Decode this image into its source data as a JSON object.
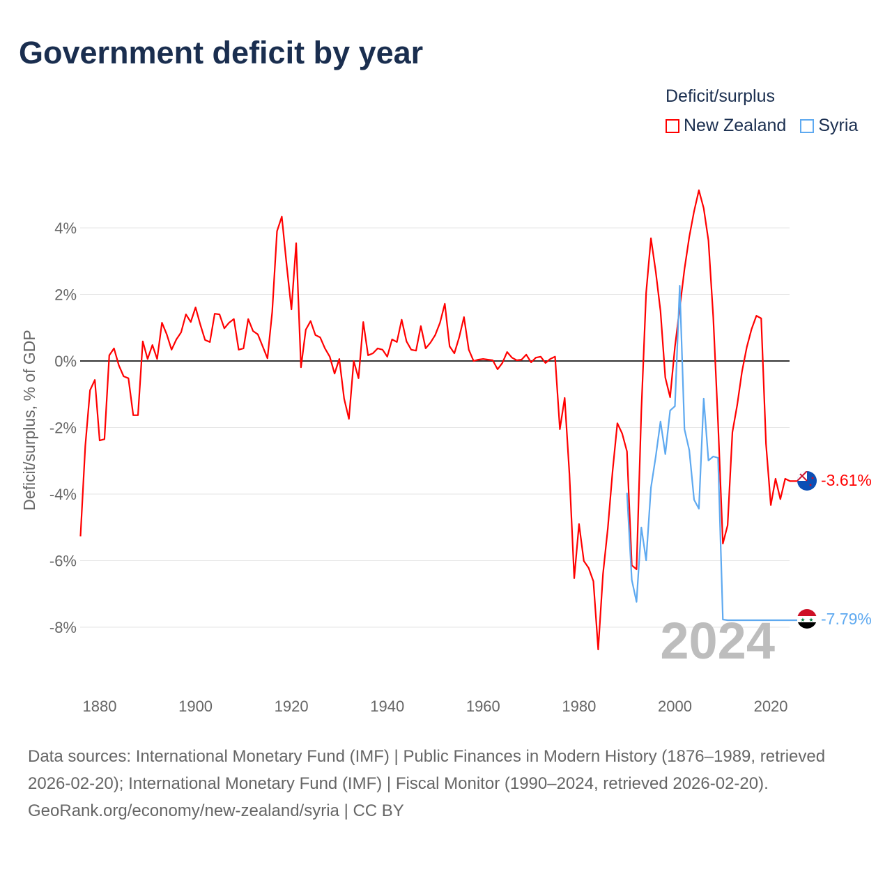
{
  "title": "Government deficit by year",
  "legend": {
    "title": "Deficit/surplus",
    "items": [
      {
        "name": "New Zealand",
        "color": "#ff0000"
      },
      {
        "name": "Syria",
        "color": "#5ea9f0"
      }
    ]
  },
  "footer": {
    "sources": "Data sources: International Monetary Fund (IMF) | Public Finances in Modern History (1876–1989, retrieved 2026-02-20); International Monetary Fund (IMF) | Fiscal Monitor (1990–2024, retrieved 2026-02-20).",
    "credit": "GeoRank.org/economy/new-zealand/syria | CC BY"
  },
  "chart_data": {
    "type": "line",
    "title": "Government deficit by year",
    "xlabel": "",
    "ylabel": "Deficit/surplus, % of GDP",
    "xlim": [
      1876,
      2024
    ],
    "ylim": [
      -10,
      5.5
    ],
    "x_ticks": [
      1880,
      1900,
      1920,
      1940,
      1960,
      1980,
      2000,
      2020
    ],
    "y_ticks": [
      4,
      2,
      0,
      -2,
      -4,
      -6,
      -8
    ],
    "y_tick_labels": [
      "4%",
      "2%",
      "0%",
      "-2%",
      "-4%",
      "-6%",
      "-8%"
    ],
    "grid": true,
    "legend_position": "top-right",
    "year_watermark": "2024",
    "end_labels": [
      "-3.61%",
      "-7.79%"
    ],
    "series": [
      {
        "name": "New Zealand",
        "color": "#ff0000",
        "start_year": 1876,
        "values": [
          -5.27,
          -2.55,
          -0.88,
          -0.57,
          -2.39,
          -2.35,
          0.17,
          0.38,
          -0.13,
          -0.46,
          -0.52,
          -1.63,
          -1.63,
          0.59,
          0.06,
          0.48,
          0.06,
          1.15,
          0.8,
          0.34,
          0.65,
          0.86,
          1.4,
          1.17,
          1.61,
          1.09,
          0.63,
          0.57,
          1.42,
          1.4,
          0.98,
          1.15,
          1.26,
          0.34,
          0.38,
          1.26,
          0.9,
          0.8,
          0.44,
          0.08,
          1.47,
          3.9,
          4.34,
          2.89,
          1.55,
          3.54,
          -0.19,
          0.94,
          1.2,
          0.78,
          0.71,
          0.38,
          0.13,
          -0.38,
          0.06,
          -1.13,
          -1.74,
          0,
          -0.52,
          1.17,
          0.17,
          0.23,
          0.38,
          0.34,
          0.13,
          0.65,
          0.57,
          1.24,
          0.59,
          0.34,
          0.31,
          1.05,
          0.38,
          0.55,
          0.78,
          1.15,
          1.72,
          0.44,
          0.23,
          0.71,
          1.32,
          0.34,
          0,
          0.04,
          0.06,
          0.04,
          0.02,
          -0.25,
          -0.06,
          0.27,
          0.1,
          0.02,
          0.04,
          0.19,
          -0.04,
          0.1,
          0.13,
          -0.06,
          0.06,
          0.13,
          -2.05,
          -1.11,
          -3.39,
          -6.53,
          -4.9,
          -6.01,
          -6.22,
          -6.62,
          -8.67,
          -6.4,
          -5.03,
          -3.3,
          -1.87,
          -2.18,
          -2.72,
          -6.14,
          -6.26,
          -1.5,
          2.05,
          3.69,
          2.68,
          1.5,
          -0.5,
          -1.09,
          0.42,
          1.59,
          2.76,
          3.73,
          4.5,
          5.13,
          4.59,
          3.62,
          1.32,
          -1.86,
          -5.49,
          -4.94,
          -2.14,
          -1.32,
          -0.31,
          0.42,
          0.96,
          1.36,
          1.28,
          -2.49,
          -4.33,
          -3.54,
          -4.15,
          -3.54,
          -3.61
        ]
      },
      {
        "name": "Syria",
        "color": "#5ea9f0",
        "start_year": 1990,
        "values": [
          -3.96,
          -6.58,
          -7.24,
          -5.0,
          -5.99,
          -3.81,
          -2.87,
          -1.82,
          -2.8,
          -1.49,
          -1.36,
          2.26,
          -2.05,
          -2.68,
          -4.17,
          -4.44,
          -1.13,
          -2.99,
          -2.87,
          -2.91,
          -7.77,
          -7.79,
          -7.79,
          -7.79,
          -7.79,
          -7.79,
          -7.79,
          -7.79,
          -7.79,
          -7.79,
          -7.79,
          -7.79,
          -7.79,
          -7.79,
          -7.79
        ]
      }
    ]
  }
}
